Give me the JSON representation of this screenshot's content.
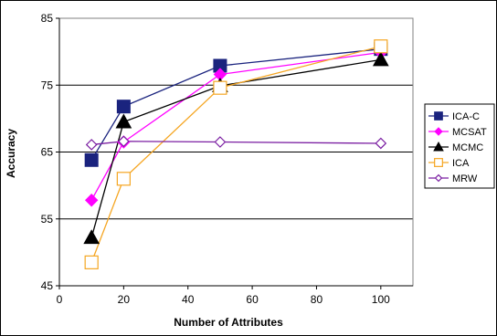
{
  "chart_data": {
    "type": "line",
    "title": "",
    "xlabel": "Number of Attributes",
    "ylabel": "Accuracy",
    "xlim": [
      0,
      110
    ],
    "ylim": [
      45,
      85
    ],
    "x_ticks": [
      0,
      20,
      40,
      60,
      80,
      100
    ],
    "y_ticks": [
      45,
      55,
      65,
      75,
      85
    ],
    "x_tick_labels": [
      "0",
      "20",
      "40",
      "60",
      "80",
      "100"
    ],
    "y_tick_labels": [
      "45",
      "55",
      "65",
      "75",
      "85"
    ],
    "grid": "horizontal",
    "legend_position": "right",
    "series": [
      {
        "name": "ICA-C",
        "color": "#1a237e",
        "marker": "square-filled",
        "x": [
          10,
          20,
          50,
          100
        ],
        "y": [
          63.8,
          71.8,
          77.9,
          80.4
        ]
      },
      {
        "name": "MCSAT",
        "color": "#ff00ff",
        "marker": "diamond-filled",
        "x": [
          10,
          20,
          50,
          100
        ],
        "y": [
          57.8,
          66.5,
          76.6,
          79.9
        ]
      },
      {
        "name": "MCMC",
        "color": "#000000",
        "marker": "triangle-filled",
        "x": [
          10,
          20,
          50,
          100
        ],
        "y": [
          52.2,
          69.5,
          74.9,
          78.8
        ]
      },
      {
        "name": "ICA",
        "color": "#f5a623",
        "marker": "square-open",
        "x": [
          10,
          20,
          50,
          100
        ],
        "y": [
          48.5,
          61.0,
          74.6,
          80.8
        ]
      },
      {
        "name": "MRW",
        "color": "#7b1fa2",
        "marker": "diamond-open",
        "x": [
          10,
          20,
          50,
          100
        ],
        "y": [
          66.1,
          66.6,
          66.5,
          66.3
        ]
      }
    ]
  }
}
